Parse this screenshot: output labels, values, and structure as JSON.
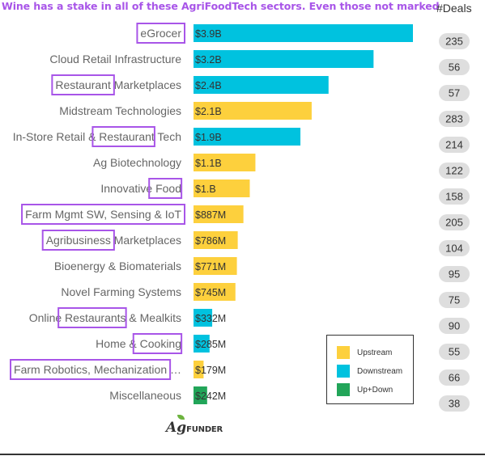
{
  "title": "Wine has a stake in all of these AgriFoodTech sectors. Even those not marked",
  "deals_header": "#Deals",
  "colors": {
    "upstream": "#fdd03d",
    "downstream": "#00c2df",
    "updown": "#22a559",
    "highlight": "#a855e8",
    "deal_pill": "#dedede"
  },
  "legend": {
    "placement": "bottom-right",
    "items": [
      {
        "key": "upstream",
        "label": "Upstream"
      },
      {
        "key": "downstream",
        "label": "Downstream"
      },
      {
        "key": "updown",
        "label": "Up+Down"
      }
    ]
  },
  "logo": {
    "text_big": "A",
    "text_g": "g",
    "text_small": "FUNDER"
  },
  "chart_data": {
    "type": "bar",
    "orientation": "horizontal",
    "unit": "USD billions",
    "xlim": [
      0,
      3.9
    ],
    "grid": false,
    "categories": [
      "eGrocer",
      "Cloud Retail Infrastructure",
      "Restaurant Marketplaces",
      "Midstream Technologies",
      "In-Store Retail & Restaurant Tech",
      "Ag Biotechnology",
      "Innovative Food",
      "Farm Mgmt SW, Sensing & IoT",
      "Agribusiness Marketplaces",
      "Bioenergy & Biomaterials",
      "Novel Farming Systems",
      "Online Restaurants & Mealkits",
      "Home & Cooking",
      "Farm Robotics, Mechanization …",
      "Miscellaneous"
    ],
    "values": [
      3.9,
      3.2,
      2.4,
      2.1,
      1.9,
      1.1,
      1.0,
      0.887,
      0.786,
      0.771,
      0.745,
      0.332,
      0.285,
      0.179,
      0.242
    ],
    "value_labels": [
      "$3.9B",
      "$3.2B",
      "$2.4B",
      "$2.1B",
      "$1.9B",
      "$1.1B",
      "$1.B",
      "$887M",
      "$786M",
      "$771M",
      "$745M",
      "$332M",
      "$285M",
      "$179M",
      "$242M"
    ],
    "segments": [
      "downstream",
      "downstream",
      "downstream",
      "upstream",
      "downstream",
      "upstream",
      "upstream",
      "upstream",
      "upstream",
      "upstream",
      "upstream",
      "downstream",
      "downstream",
      "upstream",
      "updown"
    ],
    "deals": [
      235,
      56,
      57,
      283,
      214,
      122,
      158,
      205,
      104,
      95,
      75,
      90,
      55,
      66,
      38
    ],
    "highlights": [
      {
        "row": 0,
        "text": "eGrocer"
      },
      {
        "row": 2,
        "text": "Restaurant"
      },
      {
        "row": 4,
        "text": "Restaurant"
      },
      {
        "row": 6,
        "text": "Food"
      },
      {
        "row": 7,
        "text": "Farm Mgmt SW, Sensing & IoT"
      },
      {
        "row": 8,
        "text": "Agribusiness"
      },
      {
        "row": 11,
        "text": "Restaurants"
      },
      {
        "row": 12,
        "text": "Cooking"
      },
      {
        "row": 13,
        "text": "Farm Robotics, Mechanization"
      }
    ]
  }
}
